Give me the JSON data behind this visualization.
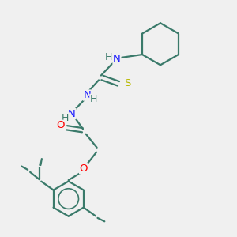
{
  "background_color": "#f0f0f0",
  "atom_colors": {
    "C": "#3a7a6a",
    "N": "#1a1aff",
    "O": "#ff0000",
    "S": "#b8b800",
    "H": "#3a7a6a"
  },
  "bond_color": "#3a7a6a",
  "bond_width": 1.6,
  "font_size": 9.5,
  "figsize": [
    3.0,
    3.0
  ],
  "dpi": 100
}
